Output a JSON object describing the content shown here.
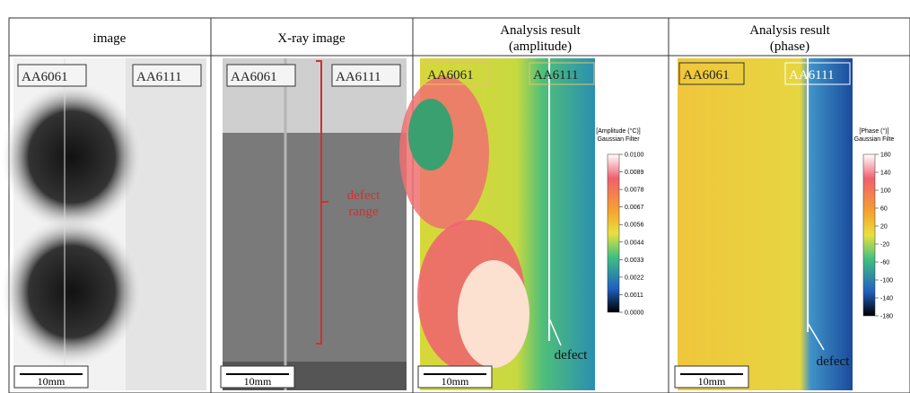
{
  "table": {
    "headers": [
      [
        "image"
      ],
      [
        "X-ray image"
      ],
      [
        "Analysis result",
        "(amplitude)"
      ],
      [
        "Analysis result",
        "(phase)"
      ]
    ],
    "panels": [
      {
        "labels": [
          "AA6061",
          "AA6111"
        ],
        "scale": "10mm"
      },
      {
        "labels": [
          "AA6061",
          "AA6111"
        ],
        "scale": "10mm",
        "annotation": [
          "defect",
          "range"
        ]
      },
      {
        "labels": [
          "AA6061",
          "AA6111"
        ],
        "scale": "10mm",
        "annotation": [
          "defect"
        ],
        "colorbar": {
          "title": [
            "[Amplitude (°C)]",
            "Gaussian Filter"
          ],
          "ticks": [
            "0.0100",
            "0.0089",
            "0.0078",
            "0.0067",
            "0.0056",
            "0.0044",
            "0.0033",
            "0.0022",
            "0.0011",
            "0.0000"
          ]
        }
      },
      {
        "labels": [
          "AA6061",
          "AA6111"
        ],
        "scale": "10mm",
        "annotation": [
          "defect"
        ],
        "colorbar": {
          "title": [
            "[Phase (°)]",
            "Gaussian Filte"
          ],
          "ticks": [
            "180",
            "140",
            "100",
            "60",
            "20",
            "-20",
            "-60",
            "-100",
            "-140",
            "-180"
          ]
        }
      }
    ]
  }
}
